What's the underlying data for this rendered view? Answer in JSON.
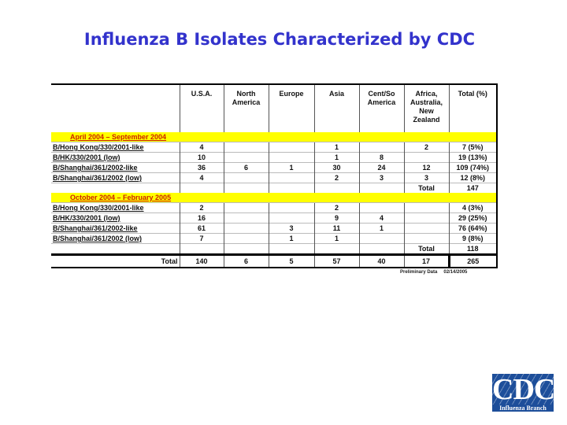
{
  "title": "Influenza B Isolates Characterized by CDC",
  "columns": [
    "",
    "U.S.A.",
    "North America",
    "Europe",
    "Asia",
    "Cent/So America",
    "Africa, Australia, New Zealand",
    "Total (%)"
  ],
  "periods": [
    {
      "label": "April 2004 – September 2004",
      "rows": [
        [
          "B/Hong Kong/330/2001-like",
          "4",
          "",
          "",
          "1",
          "",
          "2",
          "7 (5%)"
        ],
        [
          "B/HK/330/2001 (low)",
          "10",
          "",
          "",
          "1",
          "8",
          "",
          "19 (13%)"
        ],
        [
          "B/Shanghai/361/2002-like",
          "36",
          "6",
          "1",
          "30",
          "24",
          "12",
          "109 (74%)"
        ],
        [
          "B/Shanghai/361/2002 (low)",
          "4",
          "",
          "",
          "2",
          "3",
          "3",
          "12 (8%)"
        ]
      ],
      "total_label": "Total",
      "total": "147"
    },
    {
      "label": "October 2004 – February 2005",
      "rows": [
        [
          "B/Hong Kong/330/2001-like",
          "2",
          "",
          "",
          "2",
          "",
          "",
          "4 (3%)"
        ],
        [
          "B/HK/330/2001 (low)",
          "16",
          "",
          "",
          "9",
          "4",
          "",
          "29 (25%)"
        ],
        [
          "B/Shanghai/361/2002-like",
          "61",
          "",
          "3",
          "11",
          "1",
          "",
          "76 (64%)"
        ],
        [
          "B/Shanghai/361/2002 (low)",
          "7",
          "",
          "1",
          "1",
          "",
          "",
          "9 (8%)"
        ]
      ],
      "total_label": "Total",
      "total": "118"
    }
  ],
  "grand_total": [
    "Total",
    "140",
    "6",
    "5",
    "57",
    "40",
    "17",
    "265"
  ],
  "footnote": {
    "label": "Preliminary Data",
    "date": "02/14/2005"
  },
  "logo": {
    "text": "CDC",
    "subtext": "Influenza Branch",
    "color": "#1d4e9a"
  },
  "colors": {
    "title": "#3333cc",
    "period_bg": "#ffff00",
    "period_text": "#cc2200"
  }
}
